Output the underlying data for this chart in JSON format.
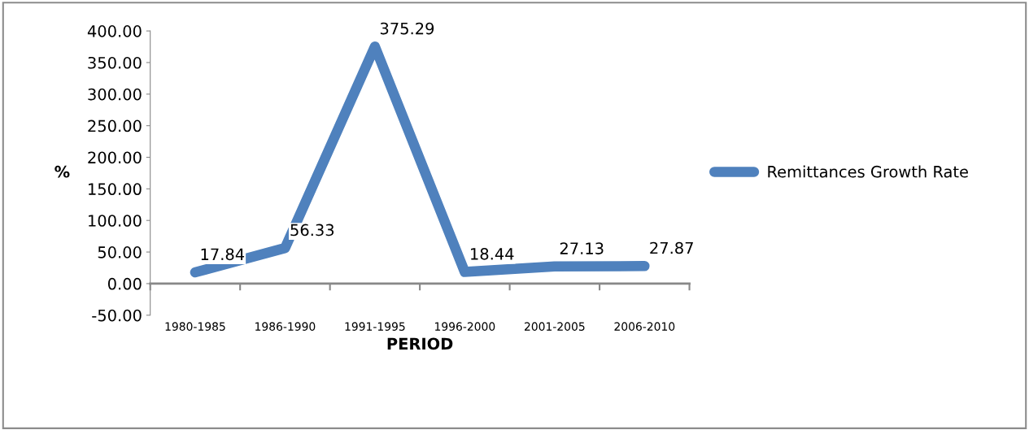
{
  "chart_data": {
    "type": "line",
    "xlabel": "PERIOD",
    "ylabel": "%",
    "categories": [
      "1980-1985",
      "1986-1990",
      "1991-1995",
      "1996-2000",
      "2001-2005",
      "2006-2010"
    ],
    "series": [
      {
        "name": "Remittances Growth Rate",
        "color": "#4f81bd",
        "values": [
          17.84,
          56.33,
          375.29,
          18.44,
          27.13,
          27.87
        ]
      }
    ],
    "ylim": [
      -50,
      400
    ],
    "yticks": [
      {
        "value": -50,
        "label": "-50.00"
      },
      {
        "value": 0,
        "label": "0.00"
      },
      {
        "value": 50,
        "label": "50.00"
      },
      {
        "value": 100,
        "label": "100.00"
      },
      {
        "value": 150,
        "label": "150.00"
      },
      {
        "value": 200,
        "label": "200.00"
      },
      {
        "value": 250,
        "label": "250.00"
      },
      {
        "value": 300,
        "label": "300.00"
      },
      {
        "value": 350,
        "label": "350.00"
      },
      {
        "value": 400,
        "label": "400.00"
      }
    ],
    "data_labels": true,
    "legend": "right",
    "line_style": "solid"
  }
}
